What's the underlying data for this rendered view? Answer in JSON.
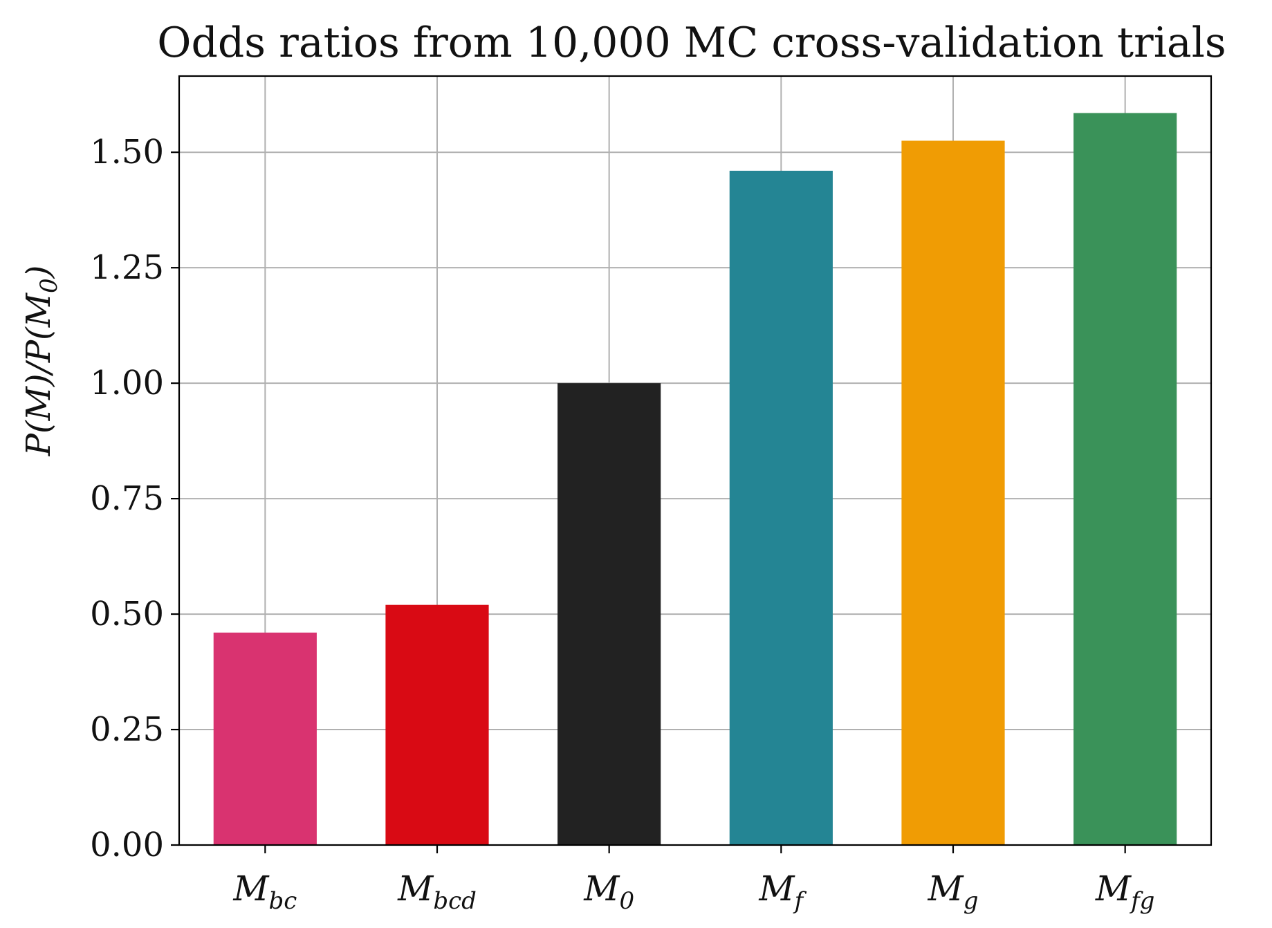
{
  "chart_data": {
    "type": "bar",
    "title": "Odds ratios from 10,000 MC cross-validation trials",
    "ylabel": "P(M)/P(M0)",
    "ylabel_parts": [
      {
        "text": "P(M)/P(M",
        "sub": false
      },
      {
        "text": "0",
        "sub": true
      },
      {
        "text": ")",
        "sub": false
      }
    ],
    "categories": [
      {
        "base": "M",
        "sub": "bc"
      },
      {
        "base": "M",
        "sub": "bcd"
      },
      {
        "base": "M",
        "sub": "0"
      },
      {
        "base": "M",
        "sub": "f"
      },
      {
        "base": "M",
        "sub": "g"
      },
      {
        "base": "M",
        "sub": "fg"
      }
    ],
    "values": [
      0.46,
      0.52,
      1.0,
      1.46,
      1.525,
      1.585
    ],
    "colors": [
      "#d93370",
      "#d90a14",
      "#222222",
      "#248594",
      "#f09c04",
      "#3a9259"
    ],
    "ylim": [
      0,
      1.665
    ],
    "yticks": [
      "0.00",
      "0.25",
      "0.50",
      "0.75",
      "1.00",
      "1.25",
      "1.50"
    ],
    "grid": true,
    "legend": "none"
  }
}
